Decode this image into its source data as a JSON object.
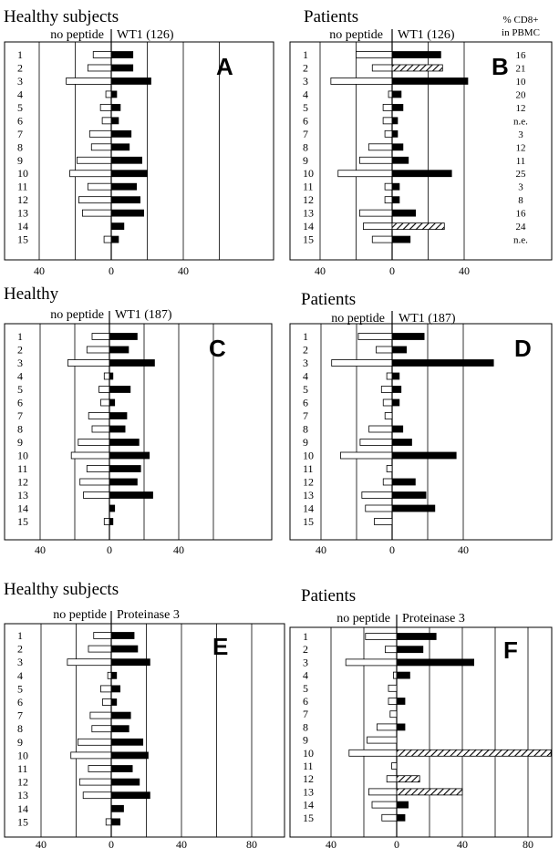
{
  "colors": {
    "bar_fill": "#000000",
    "empty_fill": "#ffffff",
    "line": "#000000",
    "hatch": "#000000"
  },
  "extra_column": {
    "header_line1": "% CD8+",
    "header_line2": "in PBMC",
    "values": [
      "16",
      "21",
      "10",
      "20",
      "12",
      "n.e.",
      "3",
      "12",
      "11",
      "25",
      "3",
      "8",
      "16",
      "24",
      "n.e."
    ]
  },
  "chart_data": [
    {
      "panel": "A",
      "type": "bar",
      "orientation": "horizontal",
      "title": "Healthy subjects",
      "left_label": "no peptide",
      "right_label": "WT1 (126)",
      "categories": [
        "1",
        "2",
        "3",
        "4",
        "5",
        "6",
        "7",
        "8",
        "9",
        "10",
        "11",
        "12",
        "13",
        "14",
        "15"
      ],
      "x_ticks": [
        "40",
        "0",
        "40"
      ],
      "xlim": [
        -40,
        55
      ],
      "grid": true,
      "series": [
        {
          "name": "no peptide",
          "values": [
            10,
            13,
            25,
            3,
            6,
            5,
            12,
            11,
            19,
            23,
            13,
            18,
            16,
            0,
            4
          ]
        },
        {
          "name": "WT1 (126)",
          "values": [
            12,
            12,
            22,
            3,
            5,
            4,
            11,
            10,
            17,
            20,
            14,
            16,
            18,
            7,
            4
          ]
        }
      ],
      "hatched": []
    },
    {
      "panel": "B",
      "type": "bar",
      "orientation": "horizontal",
      "title": "Patients",
      "left_label": "no peptide",
      "right_label": "WT1 (126)",
      "categories": [
        "1",
        "2",
        "3",
        "4",
        "5",
        "6",
        "7",
        "8",
        "9",
        "10",
        "11",
        "12",
        "13",
        "14",
        "15"
      ],
      "x_ticks": [
        "40",
        "0",
        "40"
      ],
      "xlim": [
        -45,
        55
      ],
      "grid": true,
      "series": [
        {
          "name": "no peptide",
          "values": [
            20,
            11,
            34,
            2,
            5,
            5,
            4,
            13,
            18,
            30,
            4,
            4,
            18,
            16,
            11
          ]
        },
        {
          "name": "WT1 (126)",
          "values": [
            27,
            28,
            42,
            5,
            6,
            3,
            3,
            6,
            9,
            33,
            4,
            4,
            13,
            29,
            10
          ]
        }
      ],
      "hatched": [
        2,
        14
      ]
    },
    {
      "panel": "C",
      "type": "bar",
      "orientation": "horizontal",
      "title": "Healthy",
      "left_label": "no peptide",
      "right_label": "WT1 (187)",
      "categories": [
        "1",
        "2",
        "3",
        "4",
        "5",
        "6",
        "7",
        "8",
        "9",
        "10",
        "11",
        "12",
        "13",
        "14",
        "15"
      ],
      "x_ticks": [
        "40",
        "0",
        "40"
      ],
      "xlim": [
        -40,
        55
      ],
      "grid": true,
      "series": [
        {
          "name": "no peptide",
          "values": [
            10,
            13,
            24,
            3,
            6,
            5,
            12,
            10,
            18,
            22,
            13,
            17,
            15,
            0,
            3
          ]
        },
        {
          "name": "WT1 (187)",
          "values": [
            16,
            11,
            26,
            2,
            12,
            3,
            10,
            9,
            17,
            23,
            18,
            16,
            25,
            3,
            2
          ]
        }
      ],
      "hatched": []
    },
    {
      "panel": "D",
      "type": "bar",
      "orientation": "horizontal",
      "title": "Patients",
      "left_label": "no peptide",
      "right_label": "WT1 (187)",
      "categories": [
        "1",
        "2",
        "3",
        "4",
        "5",
        "6",
        "7",
        "8",
        "9",
        "10",
        "11",
        "12",
        "13",
        "14",
        "15"
      ],
      "x_ticks": [
        "40",
        "0",
        "40"
      ],
      "xlim": [
        -45,
        55
      ],
      "grid": true,
      "series": [
        {
          "name": "no peptide",
          "values": [
            19,
            9,
            34,
            3,
            6,
            5,
            4,
            13,
            18,
            29,
            3,
            5,
            17,
            15,
            10
          ]
        },
        {
          "name": "WT1 (187)",
          "values": [
            18,
            8,
            57,
            4,
            5,
            4,
            0,
            6,
            11,
            36,
            0,
            13,
            19,
            24,
            0
          ]
        }
      ],
      "hatched": []
    },
    {
      "panel": "E",
      "type": "bar",
      "orientation": "horizontal",
      "title": "Healthy subjects",
      "left_label": "no peptide",
      "right_label": "Proteinase 3",
      "categories": [
        "1",
        "2",
        "3",
        "4",
        "5",
        "6",
        "7",
        "8",
        "9",
        "10",
        "11",
        "12",
        "13",
        "14",
        "15"
      ],
      "x_ticks": [
        "40",
        "0",
        "40",
        "80"
      ],
      "xlim": [
        -45,
        90
      ],
      "grid": true,
      "series": [
        {
          "name": "no peptide",
          "values": [
            10,
            13,
            25,
            2,
            6,
            5,
            12,
            11,
            19,
            23,
            13,
            18,
            16,
            0,
            3
          ]
        },
        {
          "name": "Proteinase 3",
          "values": [
            13,
            15,
            22,
            3,
            5,
            3,
            11,
            10,
            18,
            21,
            12,
            16,
            22,
            7,
            5
          ]
        }
      ],
      "hatched": []
    },
    {
      "panel": "F",
      "type": "bar",
      "orientation": "horizontal",
      "title": "Patients",
      "left_label": "no peptide",
      "right_label": "Proteinase 3",
      "categories": [
        "1",
        "2",
        "3",
        "4",
        "5",
        "6",
        "7",
        "8",
        "9",
        "10",
        "11",
        "12",
        "13",
        "14",
        "15"
      ],
      "x_ticks": [
        "40",
        "0",
        "40",
        "80"
      ],
      "xlim": [
        -45,
        90
      ],
      "grid": true,
      "series": [
        {
          "name": "no peptide",
          "values": [
            19,
            7,
            31,
            2,
            5,
            5,
            4,
            12,
            18,
            29,
            3,
            6,
            17,
            15,
            9
          ]
        },
        {
          "name": "Proteinase 3",
          "values": [
            24,
            16,
            47,
            8,
            0,
            5,
            0,
            5,
            0,
            94,
            0,
            14,
            40,
            7,
            5
          ]
        }
      ],
      "hatched": [
        10,
        12,
        13
      ]
    }
  ]
}
